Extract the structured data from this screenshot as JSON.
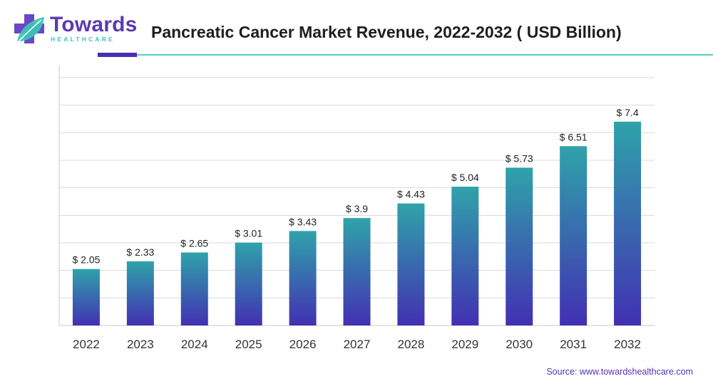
{
  "brand": {
    "name": "Towards",
    "subname": "HEALTHCARE",
    "colors": {
      "primary": "#5b3bb0",
      "accent": "#3cc4b4"
    }
  },
  "header": {
    "title": "Pancreatic Cancer Market Revenue, 2022-2032 ( USD Billion)"
  },
  "footer": {
    "source": "Source: www.towardshealthcare.com"
  },
  "chart_data": {
    "type": "bar",
    "title": "Pancreatic Cancer Market Revenue, 2022-2032 ( USD Billion)",
    "xlabel": "",
    "ylabel": "",
    "categories": [
      "2022",
      "2023",
      "2024",
      "2025",
      "2026",
      "2027",
      "2028",
      "2029",
      "2030",
      "2031",
      "2032"
    ],
    "values": [
      2.05,
      2.33,
      2.65,
      3.01,
      3.43,
      3.9,
      4.43,
      5.04,
      5.73,
      6.51,
      7.4
    ],
    "data_labels": [
      "$ 2.05",
      "$ 2.33",
      "$ 2.65",
      "$ 3.01",
      "$ 3.43",
      "$ 3.9",
      "$ 4.43",
      "$ 5.04",
      "$ 5.73",
      "$ 6.51",
      "$ 7.4"
    ],
    "ylim": [
      0,
      9
    ],
    "grid": true,
    "legend": "none",
    "bar_gradient": {
      "top": "#2fa3aa",
      "bottom": "#4230b2"
    }
  }
}
